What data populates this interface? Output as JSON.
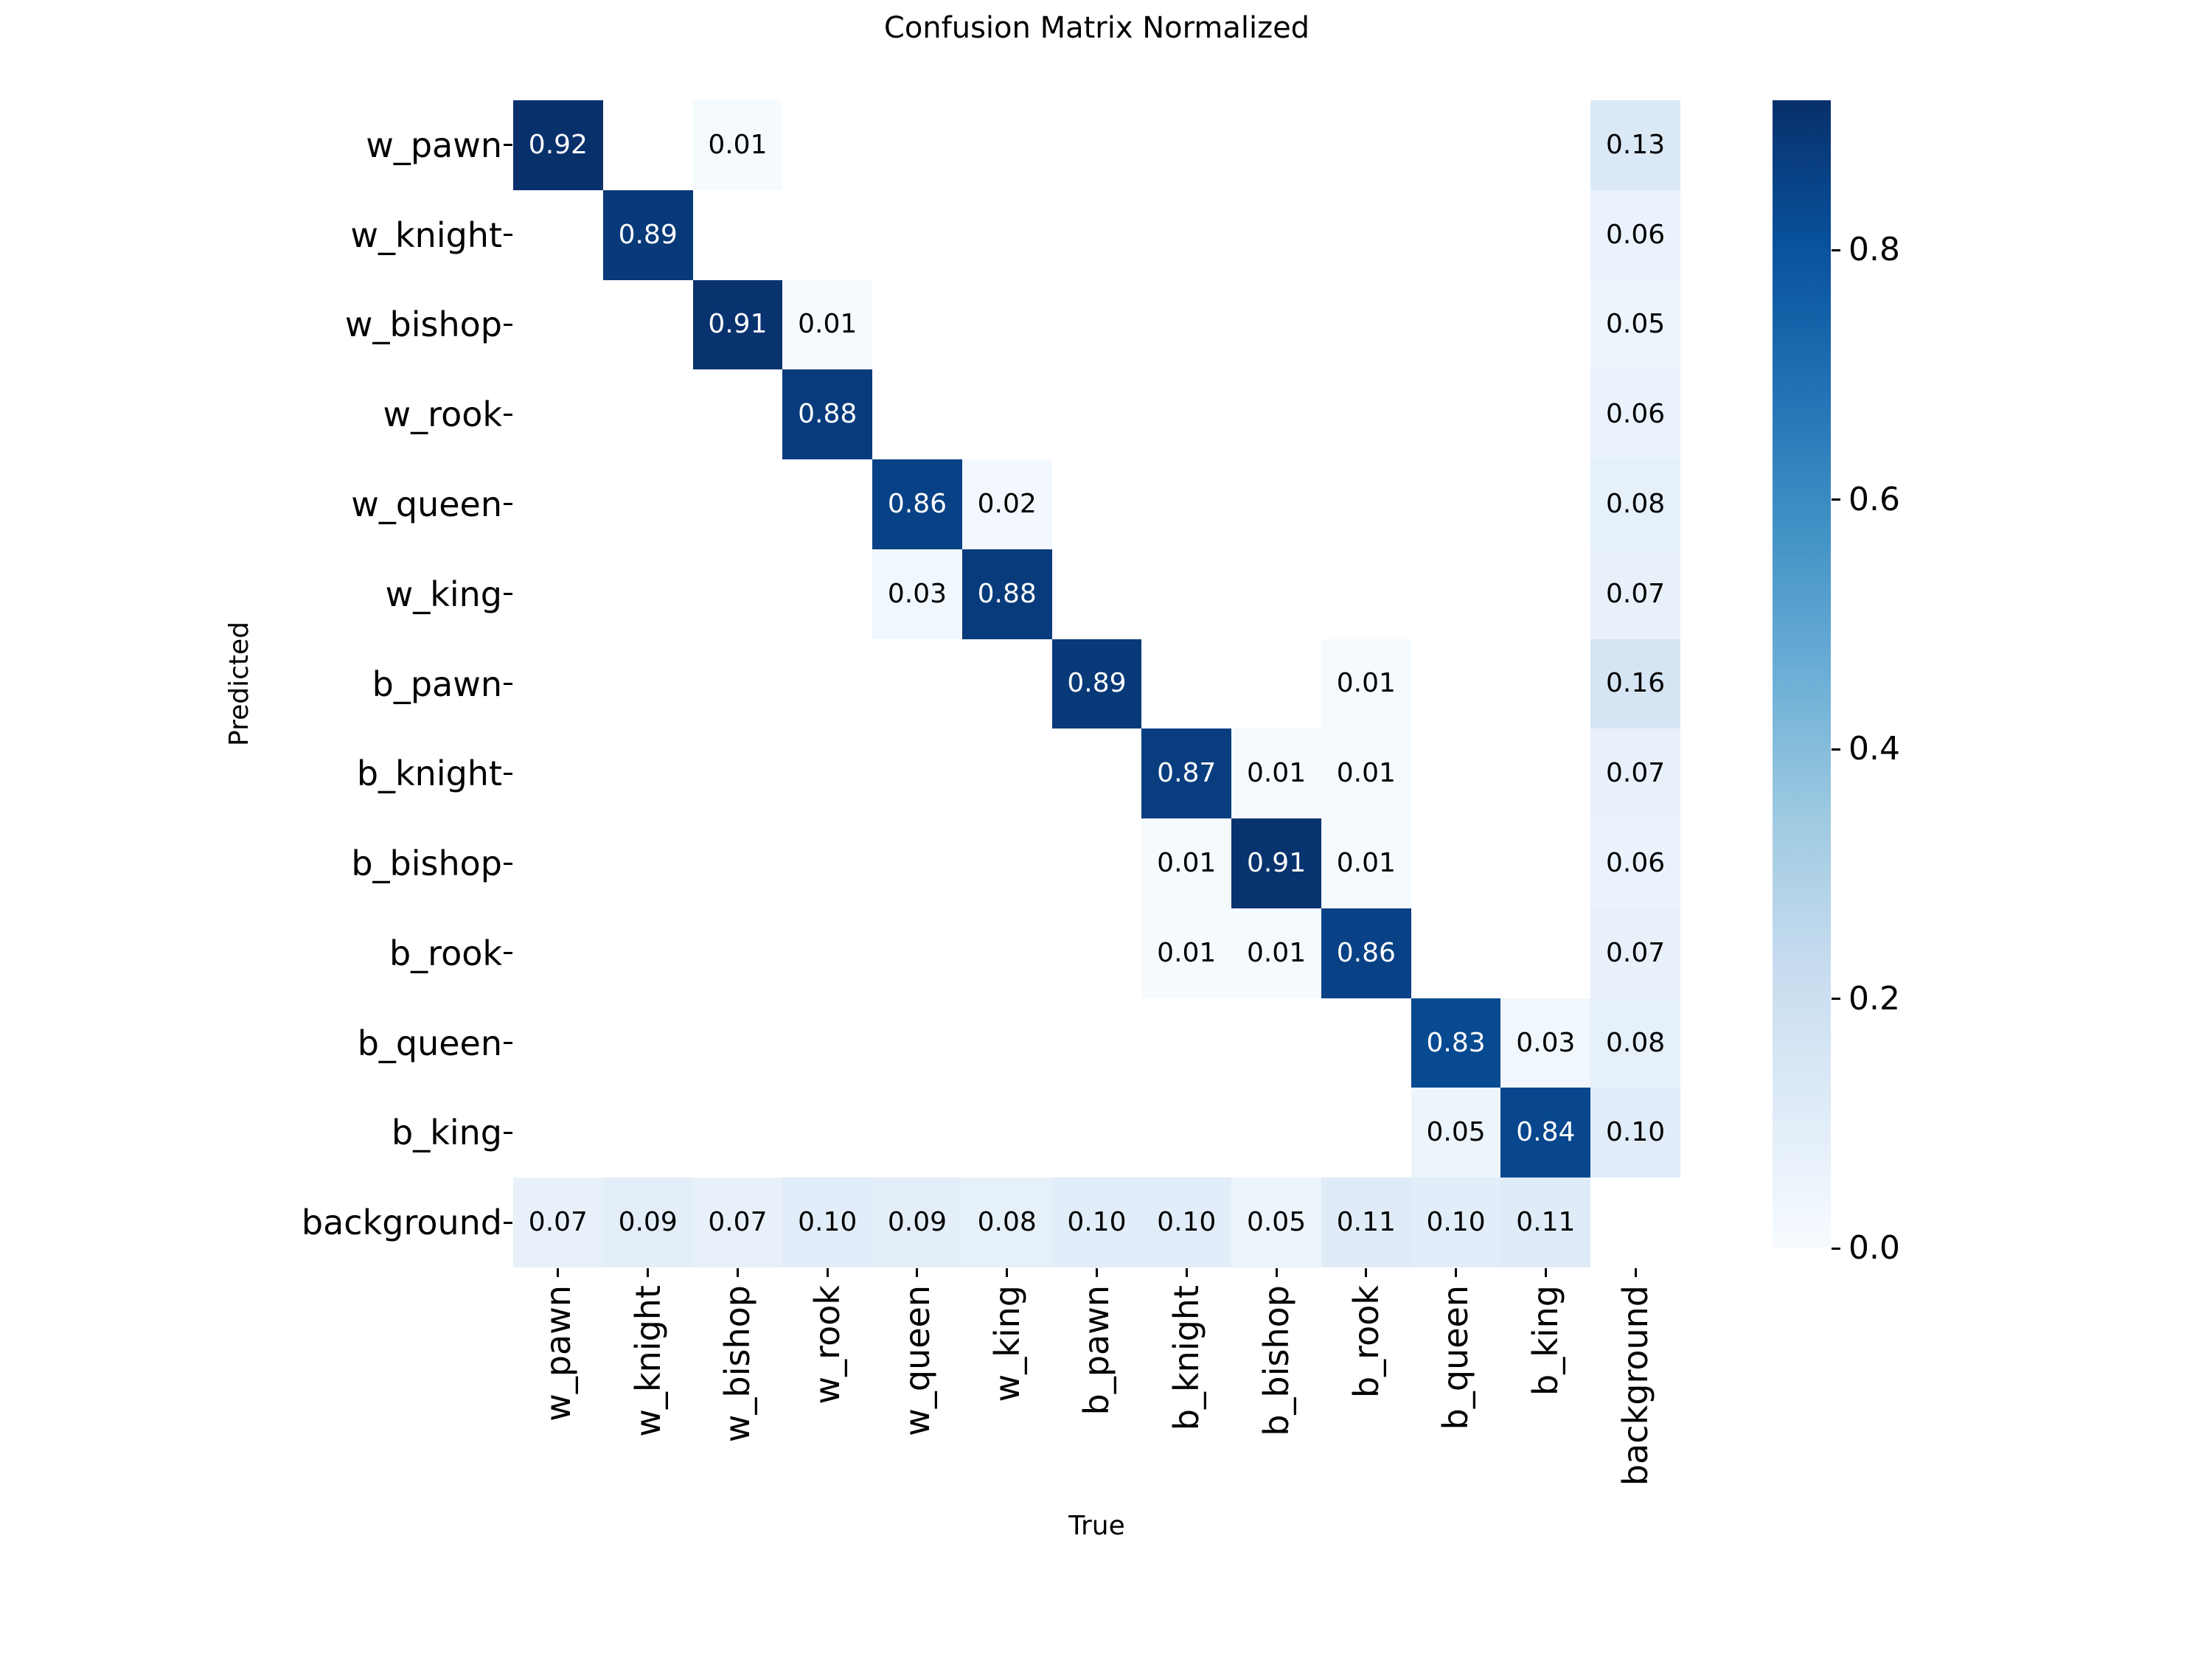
{
  "title": "Confusion Matrix Normalized",
  "axes": {
    "x_label": "True",
    "y_label": "Predicted"
  },
  "chart_data": {
    "type": "heatmap",
    "title": "Confusion Matrix Normalized",
    "xlabel": "True",
    "ylabel": "Predicted",
    "x_categories": [
      "w_pawn",
      "w_knight",
      "w_bishop",
      "w_rook",
      "w_queen",
      "w_king",
      "b_pawn",
      "b_knight",
      "b_bishop",
      "b_rook",
      "b_queen",
      "b_king",
      "background"
    ],
    "y_categories": [
      "w_pawn",
      "w_knight",
      "w_bishop",
      "w_rook",
      "w_queen",
      "w_king",
      "b_pawn",
      "b_knight",
      "b_bishop",
      "b_rook",
      "b_queen",
      "b_king",
      "background"
    ],
    "matrix": [
      [
        0.92,
        null,
        0.01,
        null,
        null,
        null,
        null,
        null,
        null,
        null,
        null,
        null,
        0.13
      ],
      [
        null,
        0.89,
        null,
        null,
        null,
        null,
        null,
        null,
        null,
        null,
        null,
        null,
        0.06
      ],
      [
        null,
        null,
        0.91,
        0.01,
        null,
        null,
        null,
        null,
        null,
        null,
        null,
        null,
        0.05
      ],
      [
        null,
        null,
        null,
        0.88,
        null,
        null,
        null,
        null,
        null,
        null,
        null,
        null,
        0.06
      ],
      [
        null,
        null,
        null,
        null,
        0.86,
        0.02,
        null,
        null,
        null,
        null,
        null,
        null,
        0.08
      ],
      [
        null,
        null,
        null,
        null,
        0.03,
        0.88,
        null,
        null,
        null,
        null,
        null,
        null,
        0.07
      ],
      [
        null,
        null,
        null,
        null,
        null,
        null,
        0.89,
        null,
        null,
        0.01,
        null,
        null,
        0.16
      ],
      [
        null,
        null,
        null,
        null,
        null,
        null,
        null,
        0.87,
        0.01,
        0.01,
        null,
        null,
        0.07
      ],
      [
        null,
        null,
        null,
        null,
        null,
        null,
        null,
        0.01,
        0.91,
        0.01,
        null,
        null,
        0.06
      ],
      [
        null,
        null,
        null,
        null,
        null,
        null,
        null,
        0.01,
        0.01,
        0.86,
        null,
        null,
        0.07
      ],
      [
        null,
        null,
        null,
        null,
        null,
        null,
        null,
        null,
        null,
        null,
        0.83,
        0.03,
        0.08
      ],
      [
        null,
        null,
        null,
        null,
        null,
        null,
        null,
        null,
        null,
        null,
        0.05,
        0.84,
        0.1
      ],
      [
        0.07,
        0.09,
        0.07,
        0.1,
        0.09,
        0.08,
        0.1,
        0.1,
        0.05,
        0.11,
        0.1,
        0.11,
        null
      ]
    ],
    "annotation_format": ".2f",
    "colormap": {
      "name": "Blues",
      "anchors": [
        {
          "pos": 0.0,
          "color": "#f7fbff"
        },
        {
          "pos": 0.125,
          "color": "#deebf7"
        },
        {
          "pos": 0.25,
          "color": "#c6dbef"
        },
        {
          "pos": 0.375,
          "color": "#9ecae1"
        },
        {
          "pos": 0.5,
          "color": "#6baed6"
        },
        {
          "pos": 0.625,
          "color": "#4292c6"
        },
        {
          "pos": 0.75,
          "color": "#2171b5"
        },
        {
          "pos": 0.875,
          "color": "#08519c"
        },
        {
          "pos": 1.0,
          "color": "#08306b"
        }
      ],
      "vmin": 0.0,
      "vmax": 0.92,
      "empty_color": "#ffffff",
      "annot_dark_text": "#000000",
      "annot_light_text": "#ffffff",
      "tick_color": "#000000"
    },
    "colorbar": {
      "position": "right",
      "tick_labels": [
        "0.0",
        "0.2",
        "0.4",
        "0.6",
        "0.8"
      ],
      "tick_values": [
        0.0,
        0.2,
        0.4,
        0.6,
        0.8
      ]
    },
    "grid": false,
    "legend": "none"
  }
}
